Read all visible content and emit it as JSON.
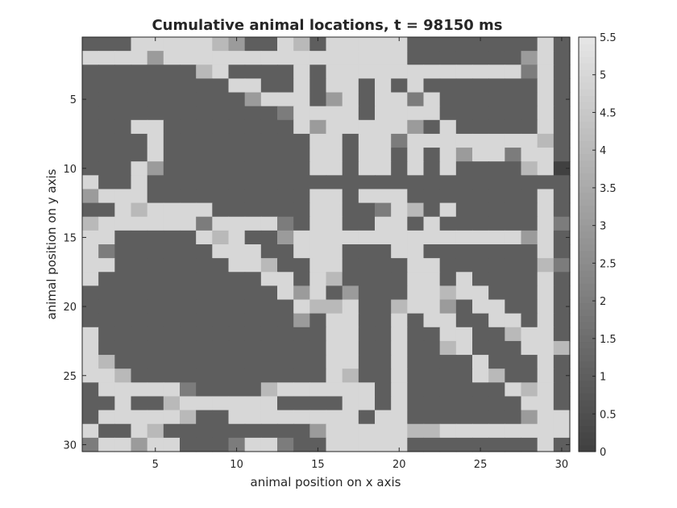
{
  "chart_data": {
    "type": "heatmap",
    "title": "Cumulative animal locations, t = 98150 ms",
    "xlabel": "animal position on x axis",
    "ylabel": "animal position on y axis",
    "xlim": [
      0.5,
      30.5
    ],
    "ylim": [
      0.5,
      30.5
    ],
    "y_reversed": true,
    "x_ticks": [
      5,
      10,
      15,
      20,
      25,
      30
    ],
    "x_tick_labels": [
      "5",
      "10",
      "15",
      "20",
      "25",
      "30"
    ],
    "y_ticks": [
      5,
      10,
      15,
      20,
      25,
      30
    ],
    "y_tick_labels": [
      "5",
      "10",
      "15",
      "20",
      "25",
      "30"
    ],
    "colormap": "gray",
    "clim": [
      0,
      5.5
    ],
    "colorbar_ticks": [
      0,
      0.5,
      1,
      1.5,
      2,
      2.5,
      3,
      3.5,
      4,
      4.5,
      5,
      5.5
    ],
    "colorbar_tick_labels": [
      "0",
      "0.5",
      "1",
      "1.5",
      "2",
      "2.5",
      "3",
      "3.5",
      "4",
      "4.5",
      "5",
      "5.5"
    ],
    "grid": false,
    "colorbar_position": "right",
    "values": [
      [
        1,
        1,
        1,
        5,
        5,
        5,
        5,
        5,
        4,
        3,
        1,
        1,
        5,
        4,
        1,
        5,
        5,
        5,
        5,
        5,
        1,
        1,
        1,
        1,
        1,
        1,
        1,
        1,
        5,
        1
      ],
      [
        5,
        5,
        5,
        5,
        3,
        5,
        5,
        5,
        5,
        5,
        5,
        5,
        5,
        5,
        5,
        5,
        5,
        5,
        5,
        5,
        1,
        1,
        1,
        1,
        1,
        1,
        1,
        3,
        5,
        1
      ],
      [
        1,
        1,
        1,
        1,
        1,
        1,
        1,
        4,
        5,
        1,
        1,
        1,
        1,
        5,
        1,
        5,
        5,
        5,
        5,
        5,
        5,
        5,
        5,
        5,
        5,
        5,
        5,
        2,
        5,
        1
      ],
      [
        1,
        1,
        1,
        1,
        1,
        1,
        1,
        1,
        1,
        5,
        5,
        1,
        1,
        5,
        1,
        5,
        5,
        1,
        5,
        1,
        5,
        1,
        1,
        1,
        1,
        1,
        1,
        1,
        5,
        1
      ],
      [
        1,
        1,
        1,
        1,
        1,
        1,
        1,
        1,
        1,
        1,
        3,
        5,
        5,
        5,
        1,
        3,
        5,
        1,
        5,
        5,
        2,
        5,
        1,
        1,
        1,
        1,
        1,
        1,
        5,
        1
      ],
      [
        1,
        1,
        1,
        1,
        1,
        1,
        1,
        1,
        1,
        1,
        1,
        1,
        2,
        5,
        5,
        5,
        5,
        1,
        5,
        5,
        5,
        5,
        1,
        1,
        1,
        1,
        1,
        1,
        5,
        1
      ],
      [
        1,
        1,
        1,
        5,
        5,
        1,
        1,
        1,
        1,
        1,
        1,
        1,
        1,
        5,
        3,
        5,
        5,
        5,
        5,
        5,
        3,
        1,
        5,
        1,
        1,
        1,
        1,
        1,
        5,
        1
      ],
      [
        1,
        1,
        1,
        1,
        5,
        1,
        1,
        1,
        1,
        1,
        1,
        1,
        1,
        1,
        5,
        5,
        1,
        5,
        5,
        2,
        5,
        5,
        5,
        5,
        5,
        5,
        5,
        5,
        4,
        1
      ],
      [
        1,
        1,
        1,
        1,
        5,
        1,
        1,
        1,
        1,
        1,
        1,
        1,
        1,
        1,
        5,
        5,
        1,
        5,
        5,
        1,
        5,
        1,
        5,
        3,
        5,
        5,
        2,
        5,
        5,
        1
      ],
      [
        1,
        1,
        1,
        5,
        3,
        1,
        1,
        1,
        1,
        1,
        1,
        1,
        1,
        1,
        5,
        5,
        1,
        5,
        5,
        1,
        5,
        1,
        5,
        1,
        1,
        1,
        1,
        4,
        5,
        0
      ],
      [
        5,
        1,
        1,
        5,
        1,
        1,
        1,
        1,
        1,
        1,
        1,
        1,
        1,
        1,
        1,
        1,
        1,
        1,
        1,
        1,
        1,
        1,
        1,
        1,
        1,
        1,
        1,
        1,
        1,
        1
      ],
      [
        3,
        5,
        5,
        5,
        1,
        1,
        1,
        1,
        1,
        1,
        1,
        1,
        1,
        1,
        5,
        5,
        1,
        5,
        5,
        5,
        1,
        1,
        1,
        1,
        1,
        1,
        1,
        1,
        5,
        1
      ],
      [
        1,
        1,
        5,
        4,
        5,
        5,
        5,
        5,
        1,
        1,
        1,
        1,
        1,
        1,
        5,
        5,
        1,
        1,
        2,
        5,
        4,
        1,
        5,
        1,
        1,
        1,
        1,
        1,
        5,
        1
      ],
      [
        4,
        5,
        5,
        5,
        5,
        5,
        5,
        2,
        5,
        5,
        5,
        5,
        2,
        1,
        5,
        5,
        1,
        1,
        5,
        5,
        1,
        5,
        1,
        1,
        1,
        1,
        1,
        1,
        5,
        2
      ],
      [
        5,
        5,
        1,
        1,
        1,
        1,
        1,
        5,
        4,
        5,
        1,
        1,
        3,
        5,
        5,
        5,
        5,
        5,
        5,
        5,
        5,
        5,
        5,
        5,
        5,
        5,
        5,
        3,
        5,
        1
      ],
      [
        5,
        2,
        1,
        1,
        1,
        1,
        1,
        1,
        5,
        5,
        5,
        1,
        1,
        5,
        5,
        5,
        1,
        1,
        1,
        5,
        5,
        1,
        1,
        1,
        1,
        1,
        1,
        1,
        5,
        1
      ],
      [
        5,
        5,
        1,
        1,
        1,
        1,
        1,
        1,
        1,
        5,
        5,
        4,
        1,
        1,
        5,
        5,
        1,
        1,
        1,
        1,
        5,
        5,
        1,
        1,
        1,
        1,
        1,
        1,
        4,
        2
      ],
      [
        5,
        1,
        1,
        1,
        1,
        1,
        1,
        1,
        1,
        1,
        1,
        5,
        5,
        1,
        5,
        4,
        1,
        1,
        1,
        1,
        5,
        5,
        1,
        5,
        1,
        1,
        1,
        1,
        5,
        1
      ],
      [
        1,
        1,
        1,
        1,
        1,
        1,
        1,
        1,
        1,
        1,
        1,
        1,
        5,
        3,
        5,
        1,
        3,
        1,
        1,
        1,
        5,
        5,
        4,
        5,
        5,
        1,
        1,
        1,
        5,
        1
      ],
      [
        1,
        1,
        1,
        1,
        1,
        1,
        1,
        1,
        1,
        1,
        1,
        1,
        1,
        5,
        4,
        4,
        5,
        1,
        1,
        4,
        5,
        5,
        3,
        1,
        5,
        5,
        1,
        1,
        5,
        1
      ],
      [
        1,
        1,
        1,
        1,
        1,
        1,
        1,
        1,
        1,
        1,
        1,
        1,
        1,
        3,
        1,
        5,
        5,
        1,
        1,
        5,
        1,
        5,
        5,
        1,
        1,
        5,
        5,
        1,
        5,
        1
      ],
      [
        5,
        1,
        1,
        1,
        1,
        1,
        1,
        1,
        1,
        1,
        1,
        1,
        1,
        1,
        1,
        5,
        5,
        1,
        1,
        5,
        1,
        1,
        5,
        5,
        1,
        1,
        4,
        5,
        5,
        1
      ],
      [
        5,
        1,
        1,
        1,
        1,
        1,
        1,
        1,
        1,
        1,
        1,
        1,
        1,
        1,
        1,
        5,
        5,
        1,
        1,
        5,
        1,
        1,
        4,
        5,
        1,
        1,
        1,
        5,
        5,
        4
      ],
      [
        5,
        4,
        1,
        1,
        1,
        1,
        1,
        1,
        1,
        1,
        1,
        1,
        1,
        1,
        1,
        5,
        5,
        1,
        1,
        5,
        1,
        1,
        1,
        1,
        5,
        1,
        1,
        1,
        5,
        1
      ],
      [
        5,
        5,
        4,
        1,
        1,
        1,
        1,
        1,
        1,
        1,
        1,
        1,
        1,
        1,
        1,
        5,
        4,
        1,
        1,
        5,
        1,
        1,
        1,
        1,
        5,
        4,
        1,
        1,
        5,
        1
      ],
      [
        1,
        5,
        5,
        5,
        5,
        5,
        2,
        1,
        1,
        1,
        1,
        4,
        5,
        5,
        5,
        5,
        5,
        5,
        1,
        5,
        1,
        1,
        1,
        1,
        1,
        1,
        5,
        4,
        5,
        1
      ],
      [
        1,
        1,
        5,
        1,
        1,
        4,
        5,
        5,
        5,
        5,
        5,
        5,
        1,
        1,
        1,
        1,
        5,
        5,
        1,
        5,
        1,
        1,
        1,
        1,
        1,
        1,
        1,
        5,
        5,
        1
      ],
      [
        1,
        5,
        5,
        5,
        5,
        5,
        4,
        1,
        1,
        5,
        5,
        5,
        5,
        5,
        5,
        5,
        5,
        1,
        5,
        5,
        1,
        1,
        1,
        1,
        1,
        1,
        1,
        3,
        5,
        5
      ],
      [
        5,
        1,
        1,
        5,
        4,
        1,
        1,
        1,
        1,
        1,
        1,
        1,
        1,
        1,
        3,
        5,
        5,
        5,
        5,
        5,
        4,
        4,
        5,
        5,
        5,
        5,
        5,
        5,
        5,
        5
      ],
      [
        2,
        5,
        5,
        3,
        5,
        5,
        1,
        1,
        1,
        2,
        5,
        5,
        2,
        1,
        1,
        5,
        5,
        5,
        5,
        5,
        1,
        1,
        1,
        1,
        1,
        1,
        1,
        1,
        5,
        1
      ]
    ]
  }
}
